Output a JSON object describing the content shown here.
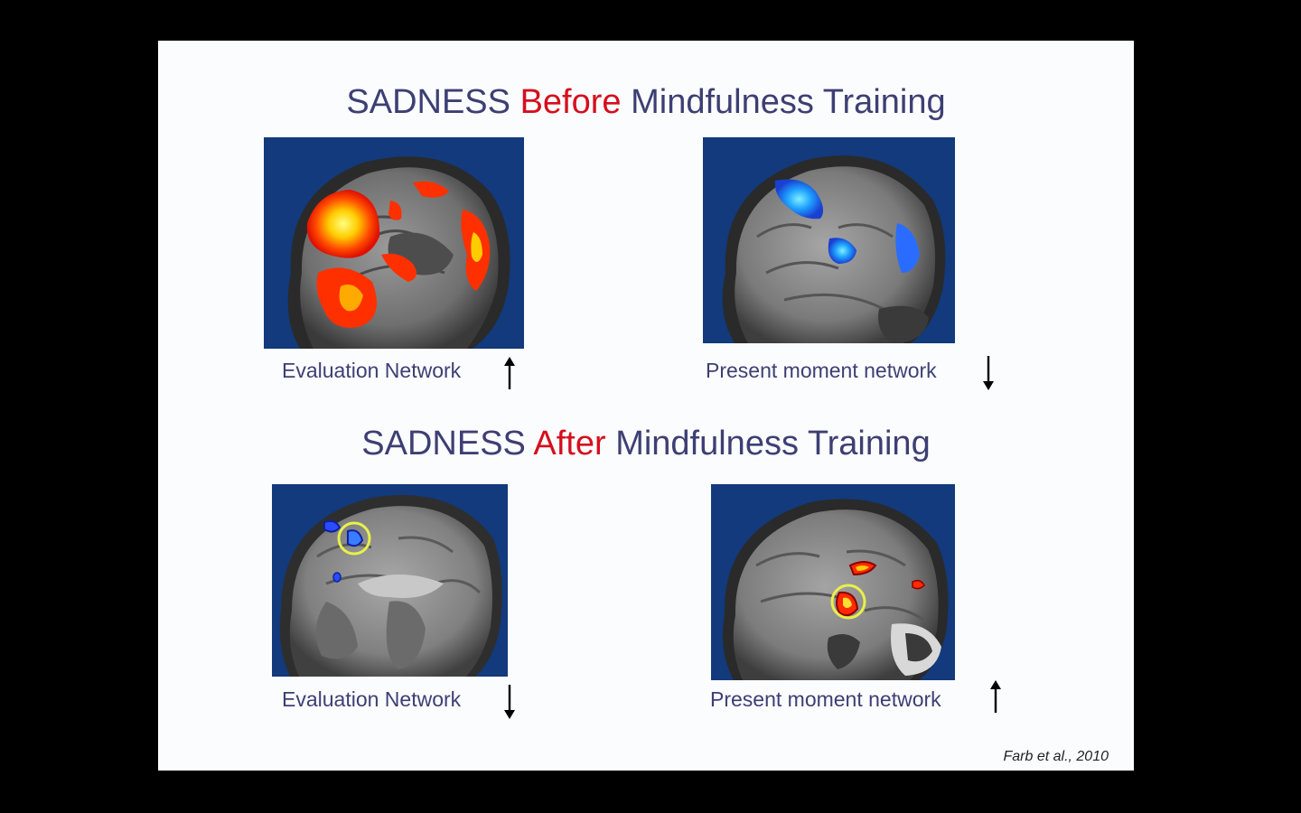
{
  "before_title": {
    "prefix": "SADNESS",
    "highlight": "Before",
    "suffix": "Mindfulness Training"
  },
  "after_title": {
    "prefix": "SADNESS",
    "highlight": "After",
    "suffix": "Mindfulness Training"
  },
  "panels": {
    "before_evaluation": {
      "caption": "Evaluation Network",
      "arrow": "up"
    },
    "before_present": {
      "caption": "Present moment network",
      "arrow": "down"
    },
    "after_evaluation": {
      "caption": "Evaluation Network",
      "arrow": "down"
    },
    "after_present": {
      "caption": "Present moment network",
      "arrow": "up"
    }
  },
  "citation": "Farb et al., 2010",
  "colors": {
    "title": "#3d3f73",
    "highlight": "#d50f1d",
    "scan_background": "#123a7c",
    "activation_hot": "#ff2a00",
    "activation_cool": "#2b7cff",
    "roi_circle": "#e8f04a"
  }
}
